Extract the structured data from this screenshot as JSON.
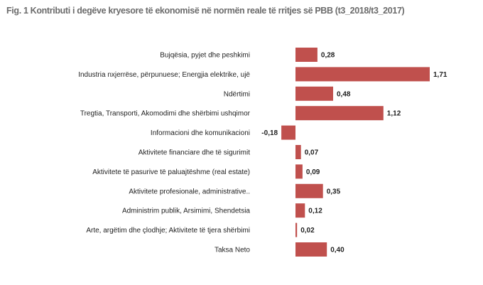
{
  "chart_data": {
    "type": "bar",
    "orientation": "horizontal",
    "title": "Fig. 1 Kontributi i degëve kryesore të ekonomisë në normën reale të rritjes së PBB (t3_2018/t3_2017)",
    "categories": [
      "Bujqësia, pyjet dhe peshkimi",
      "Industria nxjerrëse, përpunuese; Energjia elektrike, ujë",
      "Ndërtimi",
      "Tregtia, Transporti, Akomodimi dhe shërbimi ushqimor",
      "Informacioni dhe komunikacioni",
      "Aktivitete financiare dhe të sigurimit",
      "Aktivitete të pasurive të paluajtëshme (real estate)",
      "Aktivitete profesionale, administrative..",
      "Administrim publik, Arsimimi, Shendetsia",
      "Arte, argëtim dhe çlodhje; Aktivitete të tjera shërbimi",
      "Taksa Neto"
    ],
    "values": [
      0.28,
      1.71,
      0.48,
      1.12,
      -0.18,
      0.07,
      0.09,
      0.35,
      0.12,
      0.02,
      0.4
    ],
    "value_labels": [
      "0,28",
      "1,71",
      "0,48",
      "1,12",
      "-0,18",
      "0,07",
      "0,09",
      "0,35",
      "0,12",
      "0,02",
      "0,40"
    ],
    "bar_color": "#c0504d",
    "grid": false,
    "legend": "none"
  }
}
